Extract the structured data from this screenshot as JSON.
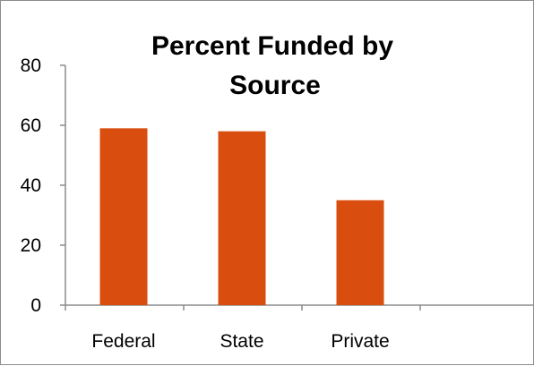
{
  "chart_data": {
    "type": "bar",
    "title": "Percent Funded by Source",
    "title_lines": [
      "Percent Funded by",
      "Source"
    ],
    "categories": [
      "Federal",
      "State",
      "Private",
      ""
    ],
    "values": [
      59,
      58,
      35,
      null
    ],
    "yticks": [
      "0",
      "20",
      "40",
      "60",
      "80"
    ],
    "ylim": [
      0,
      80
    ],
    "xlabel": "",
    "ylabel": "",
    "grid": false,
    "legend": "none",
    "bar_color": "#d94e0f"
  }
}
